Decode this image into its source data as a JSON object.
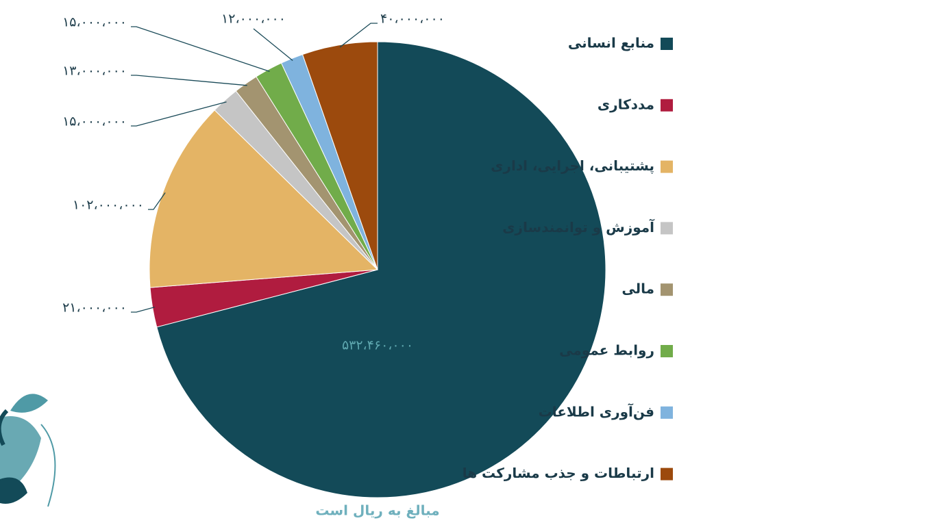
{
  "chart_data": {
    "type": "pie",
    "note": "مبالغ به ریال است",
    "categories": [
      "منابع انسانی",
      "مددکاری",
      "پشتیبانی، اجرایی، اداری",
      "آموزش و توانمندسازی",
      "مالی",
      "روابط عمومی",
      "فن‌آوری اطلاعات",
      "ارتباطات و جذب مشارکت ها"
    ],
    "values": [
      532460000,
      21000000,
      102000000,
      15000000,
      13000000,
      15000000,
      12000000,
      40000000
    ],
    "value_labels": [
      "۵۳۲،۴۶۰،۰۰۰",
      "۲۱،۰۰۰،۰۰۰",
      "۱۰۲،۰۰۰،۰۰۰",
      "۱۵،۰۰۰،۰۰۰",
      "۱۳،۰۰۰،۰۰۰",
      "۱۵،۰۰۰،۰۰۰",
      "۱۲،۰۰۰،۰۰۰",
      "۴۰،۰۰۰،۰۰۰"
    ],
    "colors": [
      "#134a58",
      "#b01c3f",
      "#e4b465",
      "#c5c5c5",
      "#a39470",
      "#71ac4a",
      "#7fb3de",
      "#9c4a0d"
    ],
    "legend": "right"
  }
}
